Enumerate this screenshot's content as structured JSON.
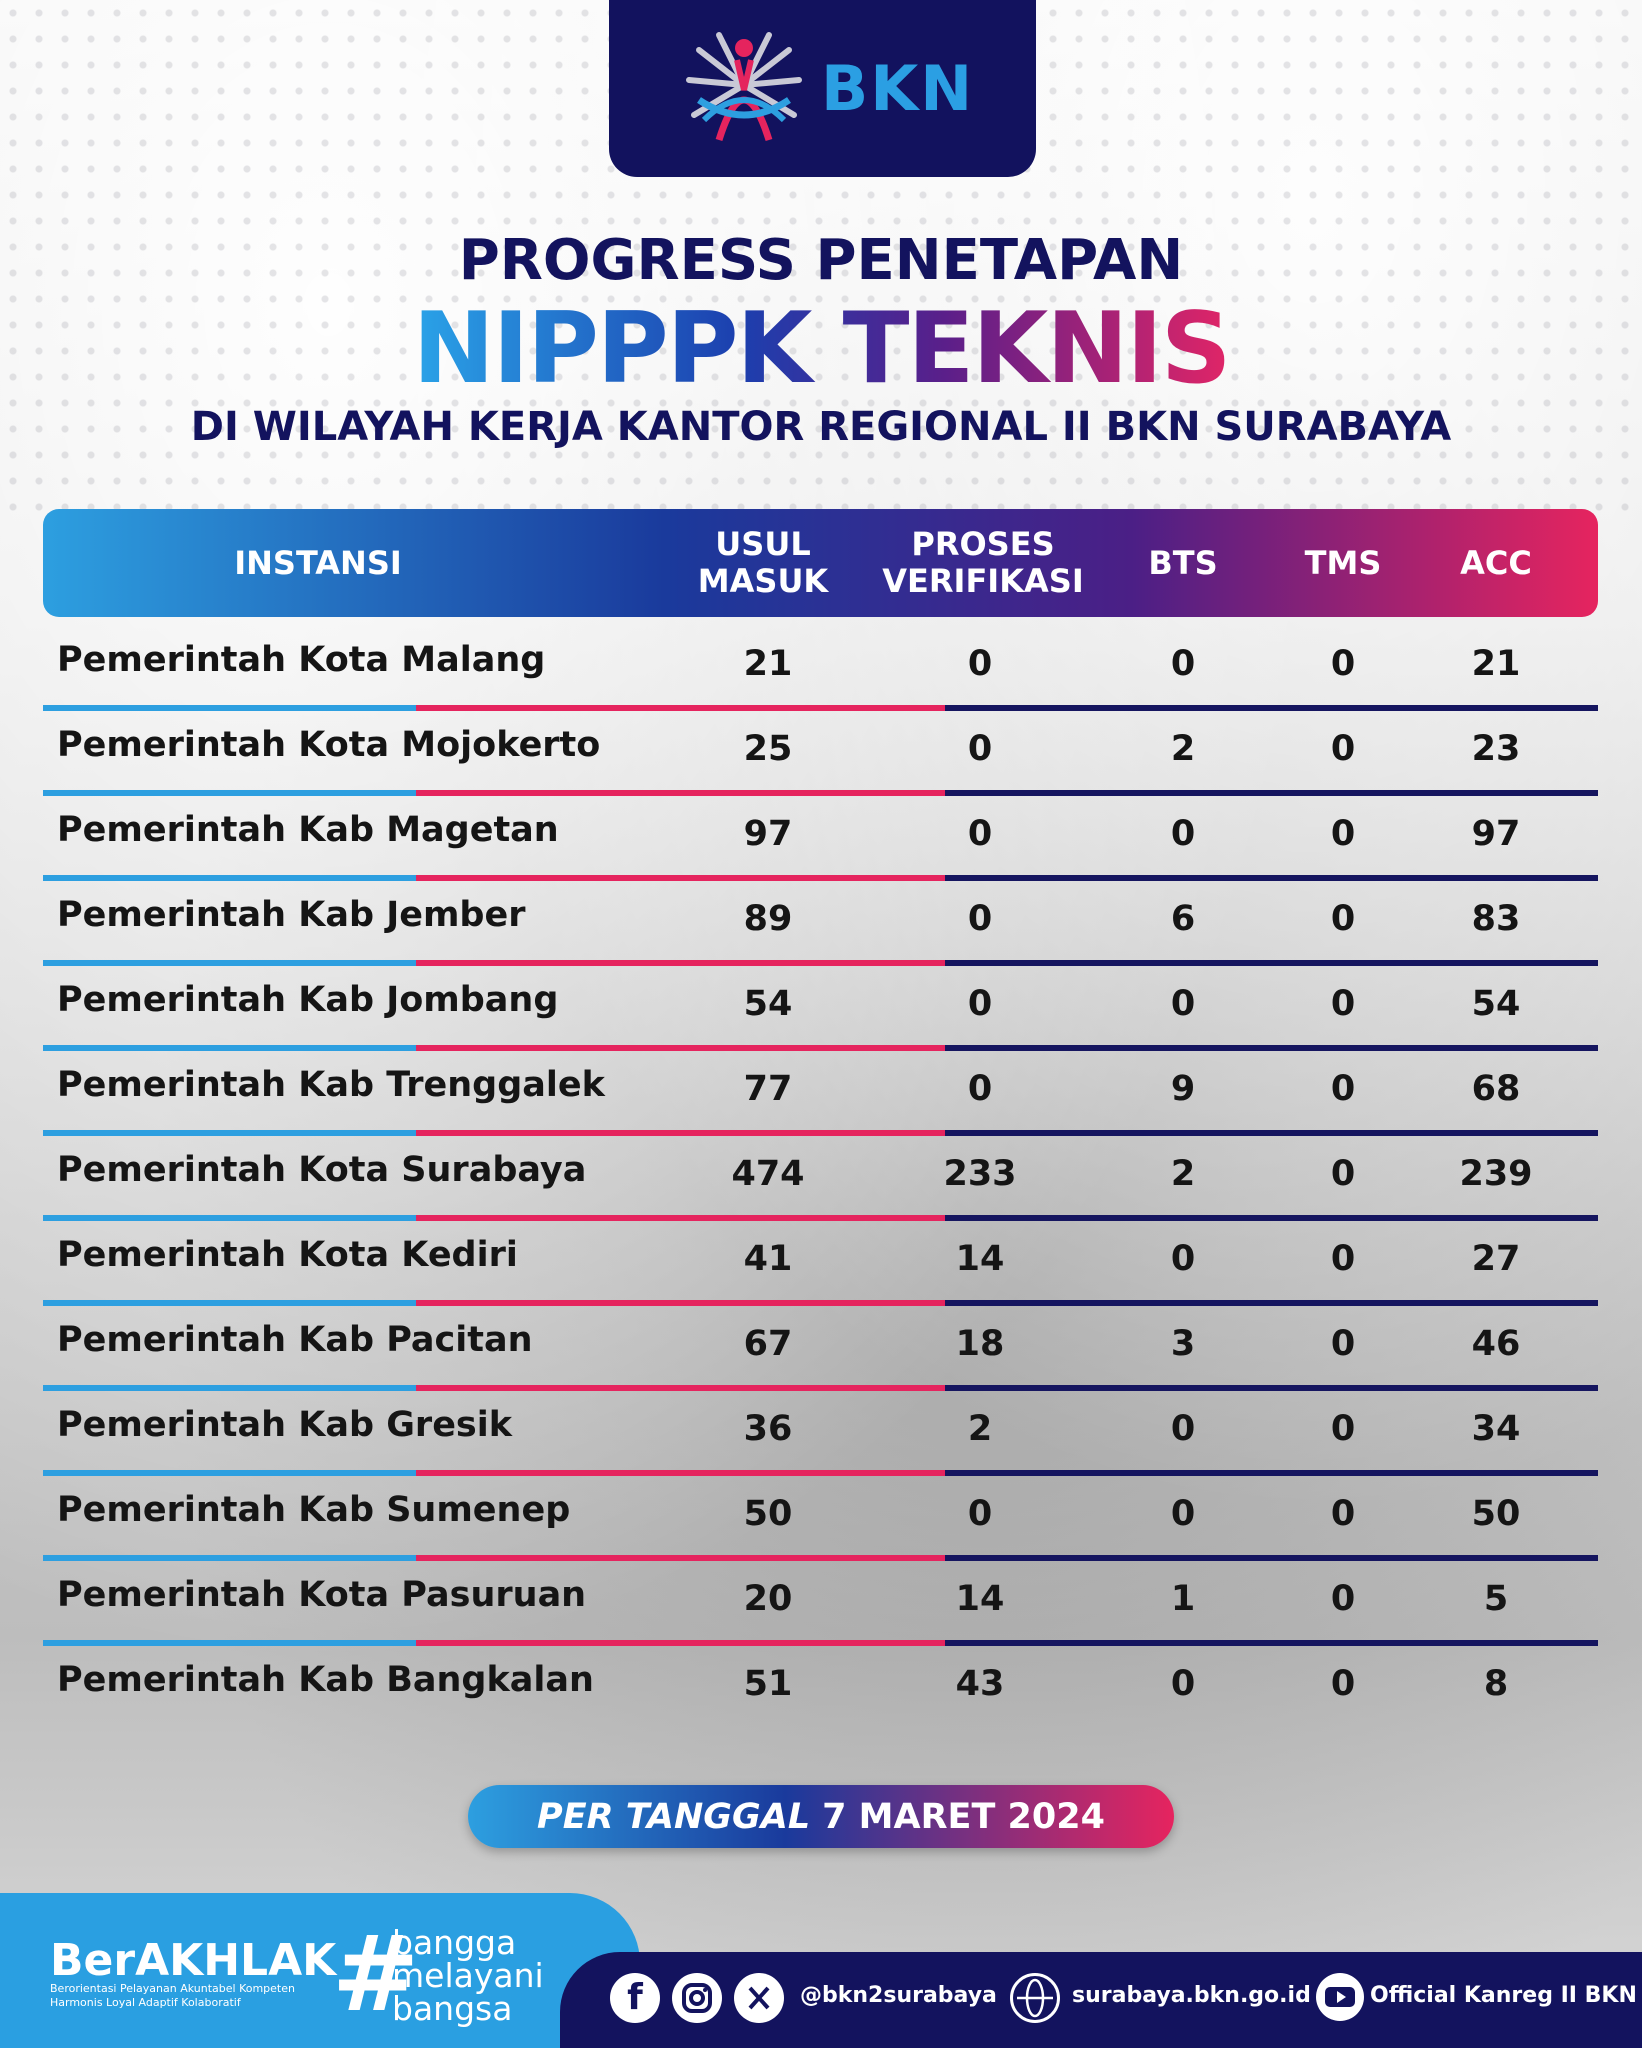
{
  "logo": {
    "text": "BKN"
  },
  "title": {
    "line1": "PROGRESS PENETAPAN",
    "line2": "NIPPPK TEKNIS",
    "line3": "DI WILAYAH KERJA KANTOR REGIONAL II BKN SURABAYA"
  },
  "table": {
    "headers": {
      "instansi": "INSTANSI",
      "usul_1": "USUL",
      "usul_2": "MASUK",
      "proses_1": "PROSES",
      "proses_2": "VERIFIKASI",
      "bts": "BTS",
      "tms": "TMS",
      "acc": "ACC"
    },
    "rows": [
      {
        "name": "Pemerintah Kota Malang",
        "usul": "21",
        "proses": "0",
        "bts": "0",
        "tms": "0",
        "acc": "21"
      },
      {
        "name": "Pemerintah Kota Mojokerto",
        "usul": "25",
        "proses": "0",
        "bts": "2",
        "tms": "0",
        "acc": "23"
      },
      {
        "name": "Pemerintah Kab Magetan",
        "usul": "97",
        "proses": "0",
        "bts": "0",
        "tms": "0",
        "acc": "97"
      },
      {
        "name": "Pemerintah Kab Jember",
        "usul": "89",
        "proses": "0",
        "bts": "6",
        "tms": "0",
        "acc": "83"
      },
      {
        "name": "Pemerintah Kab Jombang",
        "usul": "54",
        "proses": "0",
        "bts": "0",
        "tms": "0",
        "acc": "54"
      },
      {
        "name": "Pemerintah Kab Trenggalek",
        "usul": "77",
        "proses": "0",
        "bts": "9",
        "tms": "0",
        "acc": "68"
      },
      {
        "name": "Pemerintah Kota Surabaya",
        "usul": "474",
        "proses": "233",
        "bts": "2",
        "tms": "0",
        "acc": "239"
      },
      {
        "name": "Pemerintah Kota Kediri",
        "usul": "41",
        "proses": "14",
        "bts": "0",
        "tms": "0",
        "acc": "27"
      },
      {
        "name": "Pemerintah Kab Pacitan",
        "usul": "67",
        "proses": "18",
        "bts": "3",
        "tms": "0",
        "acc": "46"
      },
      {
        "name": "Pemerintah Kab Gresik",
        "usul": "36",
        "proses": "2",
        "bts": "0",
        "tms": "0",
        "acc": "34"
      },
      {
        "name": "Pemerintah Kab Sumenep",
        "usul": "50",
        "proses": "0",
        "bts": "0",
        "tms": "0",
        "acc": "50"
      },
      {
        "name": "Pemerintah Kota Pasuruan",
        "usul": "20",
        "proses": "14",
        "bts": "1",
        "tms": "0",
        "acc": "5"
      },
      {
        "name": "Pemerintah Kab Bangkalan",
        "usul": "51",
        "proses": "43",
        "bts": "0",
        "tms": "0",
        "acc": "8"
      }
    ]
  },
  "date": {
    "prefix": "PER TANGGAL",
    "value": "7 MARET 2024"
  },
  "footer": {
    "berakhlak": "BerAKHLAK",
    "berakhlak_sub_1": "Berorientasi Pelayanan Akuntabel Kompeten",
    "berakhlak_sub_2": "Harmonis Loyal Adaptif Kolaboratif",
    "hash": "#",
    "slogan_1": "bangga",
    "slogan_2": "melayani",
    "slogan_3": "bangsa",
    "social_handle": "@bkn2surabaya",
    "website": "surabaya.bkn.go.id",
    "youtube": "Official Kanreg II BKN",
    "icons": [
      "facebook-icon",
      "instagram-icon",
      "x-icon",
      "globe-icon",
      "youtube-icon"
    ]
  },
  "colors": {
    "navy": "#13135e",
    "blue": "#2d9fe0",
    "pink": "#e5245e"
  }
}
